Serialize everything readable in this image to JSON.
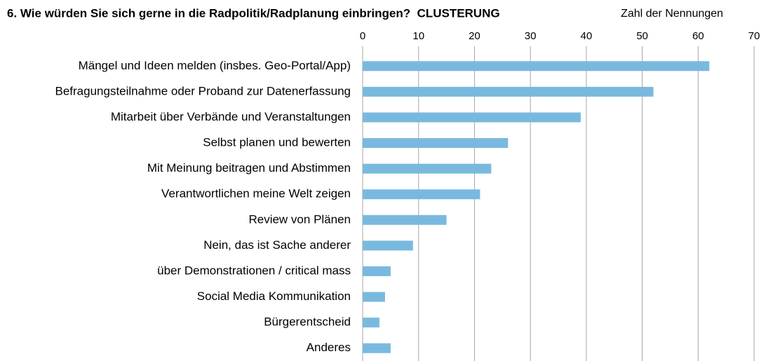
{
  "chart_data": {
    "type": "bar",
    "orientation": "horizontal",
    "title": "6. Wie würden Sie sich gerne in die Radpolitik/Radplanung einbringen?  CLUSTERUNG",
    "x_label": "Zahl der Nennungen",
    "categories": [
      "Mängel und Ideen melden (insbes. Geo-Portal/App)",
      "Befragungsteilnahme oder Proband zur Datenerfassung",
      "Mitarbeit über Verbände und Veranstaltungen",
      "Selbst planen und bewerten",
      "Mit Meinung beitragen und Abstimmen",
      "Verantwortlichen meine Welt zeigen",
      "Review von Plänen",
      "Nein, das ist Sache anderer",
      "über Demonstrationen / critical mass",
      "Social Media Kommunikation",
      "Bürgerentscheid",
      "Anderes"
    ],
    "values": [
      62,
      52,
      39,
      26,
      23,
      21,
      15,
      9,
      5,
      4,
      3,
      5
    ],
    "color": "#7ab9df",
    "xlim": [
      0,
      70
    ],
    "xticks": [
      0,
      10,
      20,
      30,
      40,
      50,
      60,
      70
    ],
    "grid": true
  }
}
